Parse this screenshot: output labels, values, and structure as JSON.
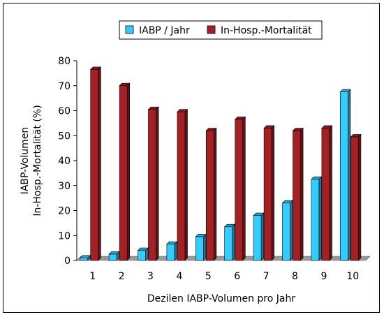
{
  "chart_data": {
    "type": "bar",
    "categories": [
      "1",
      "2",
      "3",
      "4",
      "5",
      "6",
      "7",
      "8",
      "9",
      "10"
    ],
    "series": [
      {
        "name": "IABP / Jahr",
        "color": "#33ccff",
        "values": [
          1,
          2.5,
          4,
          6.5,
          9.5,
          13.5,
          18,
          23,
          32.5,
          67.5
        ]
      },
      {
        "name": "In-Hosp.-Mortalität",
        "color": "#a32025",
        "values": [
          76.5,
          70,
          60.5,
          59.5,
          52,
          56.5,
          53,
          52,
          53,
          49.5
        ]
      }
    ],
    "xlabel": "Dezilen IABP-Volumen pro Jahr",
    "ylabel": [
      "IABP-Volumen",
      "In-Hosp.-Mortalität (%)"
    ],
    "ylim": [
      0,
      80
    ],
    "yticks": [
      0,
      10,
      20,
      30,
      40,
      50,
      60,
      70,
      80
    ],
    "grid": false,
    "legend": "top-center"
  }
}
